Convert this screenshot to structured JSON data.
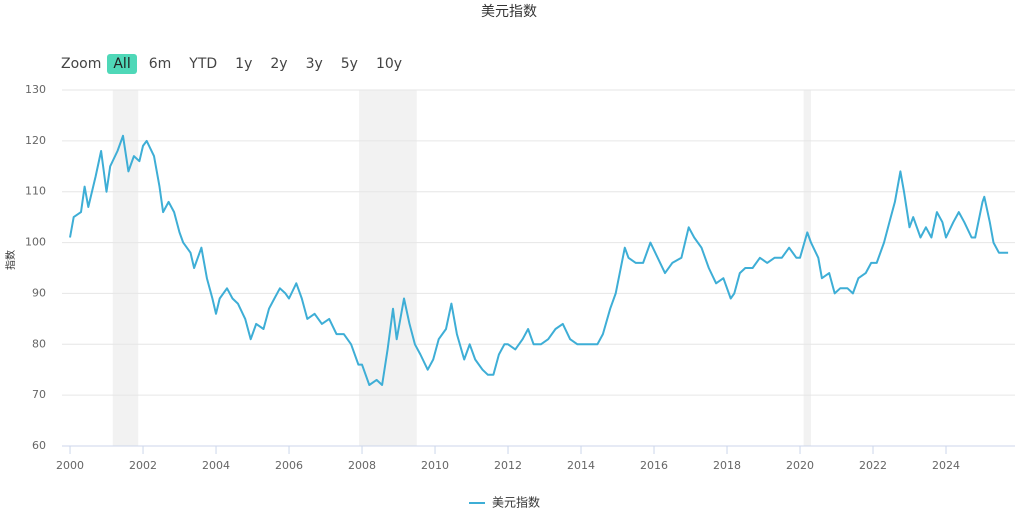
{
  "chart_data": {
    "type": "line",
    "title": "美元指数",
    "y_label": "指数",
    "range_selector": {
      "label": "Zoom",
      "buttons": [
        "All",
        "6m",
        "YTD",
        "1y",
        "2y",
        "3y",
        "5y",
        "10y"
      ],
      "selected": 0
    },
    "xlim": [
      1999.78,
      2025.89
    ],
    "xticks": [
      2000,
      2002,
      2004,
      2006,
      2008,
      2010,
      2012,
      2014,
      2016,
      2018,
      2020,
      2022,
      2024
    ],
    "ylim": [
      60,
      130
    ],
    "yticks": [
      60,
      70,
      80,
      90,
      100,
      110,
      120,
      130
    ],
    "grid": true,
    "bands": [
      {
        "from": 2001.17,
        "to": 2001.87
      },
      {
        "from": 2007.92,
        "to": 2009.5
      },
      {
        "from": 2020.1,
        "to": 2020.3
      }
    ],
    "band_color": "#f2f2f2",
    "x": [
      2000.0,
      2000.1,
      2000.3,
      2000.4,
      2000.5,
      2000.7,
      2000.85,
      2001.0,
      2001.1,
      2001.3,
      2001.45,
      2001.6,
      2001.75,
      2001.9,
      2002.0,
      2002.1,
      2002.3,
      2002.45,
      2002.55,
      2002.7,
      2002.85,
      2003.0,
      2003.1,
      2003.3,
      2003.4,
      2003.6,
      2003.75,
      2003.9,
      2004.0,
      2004.1,
      2004.3,
      2004.45,
      2004.6,
      2004.8,
      2004.95,
      2005.1,
      2005.3,
      2005.45,
      2005.6,
      2005.75,
      2005.9,
      2006.0,
      2006.2,
      2006.35,
      2006.5,
      2006.7,
      2006.9,
      2007.1,
      2007.3,
      2007.5,
      2007.7,
      2007.9,
      2008.0,
      2008.2,
      2008.4,
      2008.55,
      2008.7,
      2008.85,
      2008.95,
      2009.15,
      2009.3,
      2009.45,
      2009.6,
      2009.8,
      2009.95,
      2010.1,
      2010.3,
      2010.45,
      2010.6,
      2010.8,
      2010.95,
      2011.1,
      2011.3,
      2011.45,
      2011.6,
      2011.75,
      2011.9,
      2012.0,
      2012.2,
      2012.4,
      2012.55,
      2012.7,
      2012.9,
      2013.1,
      2013.3,
      2013.5,
      2013.7,
      2013.9,
      2014.1,
      2014.3,
      2014.45,
      2014.6,
      2014.8,
      2014.95,
      2015.2,
      2015.3,
      2015.5,
      2015.7,
      2015.9,
      2016.1,
      2016.3,
      2016.5,
      2016.75,
      2016.95,
      2017.1,
      2017.3,
      2017.5,
      2017.7,
      2017.9,
      2018.1,
      2018.2,
      2018.35,
      2018.5,
      2018.7,
      2018.9,
      2019.1,
      2019.3,
      2019.5,
      2019.7,
      2019.9,
      2020.0,
      2020.2,
      2020.3,
      2020.5,
      2020.6,
      2020.8,
      2020.95,
      2021.1,
      2021.3,
      2021.45,
      2021.6,
      2021.8,
      2021.95,
      2022.1,
      2022.3,
      2022.45,
      2022.6,
      2022.75,
      2022.85,
      2023.0,
      2023.1,
      2023.3,
      2023.45,
      2023.6,
      2023.75,
      2023.9,
      2024.0,
      2024.2,
      2024.35,
      2024.5,
      2024.7,
      2024.8,
      2025.0,
      2025.05,
      2025.2,
      2025.3,
      2025.45,
      2025.6,
      2025.7
    ],
    "series": [
      {
        "name": "美元指数",
        "color": "#3eaed6",
        "values": [
          101,
          105,
          106,
          111,
          107,
          113,
          118,
          110,
          115,
          118,
          121,
          114,
          117,
          116,
          119,
          120,
          117,
          111,
          106,
          108,
          106,
          102,
          100,
          98,
          95,
          99,
          93,
          89,
          86,
          89,
          91,
          89,
          88,
          85,
          81,
          84,
          83,
          87,
          89,
          91,
          90,
          89,
          92,
          89,
          85,
          86,
          84,
          85,
          82,
          82,
          80,
          76,
          76,
          72,
          73,
          72,
          79,
          87,
          81,
          89,
          84,
          80,
          78,
          75,
          77,
          81,
          83,
          88,
          82,
          77,
          80,
          77,
          75,
          74,
          74,
          78,
          80,
          80,
          79,
          81,
          83,
          80,
          80,
          81,
          83,
          84,
          81,
          80,
          80,
          80,
          80,
          82,
          87,
          90,
          99,
          97,
          96,
          96,
          100,
          97,
          94,
          96,
          97,
          103,
          101,
          99,
          95,
          92,
          93,
          89,
          90,
          94,
          95,
          95,
          97,
          96,
          97,
          97,
          99,
          97,
          97,
          102,
          100,
          97,
          93,
          94,
          90,
          91,
          91,
          90,
          93,
          94,
          96,
          96,
          100,
          104,
          108,
          114,
          110,
          103,
          105,
          101,
          103,
          101,
          106,
          104,
          101,
          104,
          106,
          104,
          101,
          101,
          108,
          109,
          104,
          100,
          98,
          98,
          98
        ]
      }
    ]
  }
}
